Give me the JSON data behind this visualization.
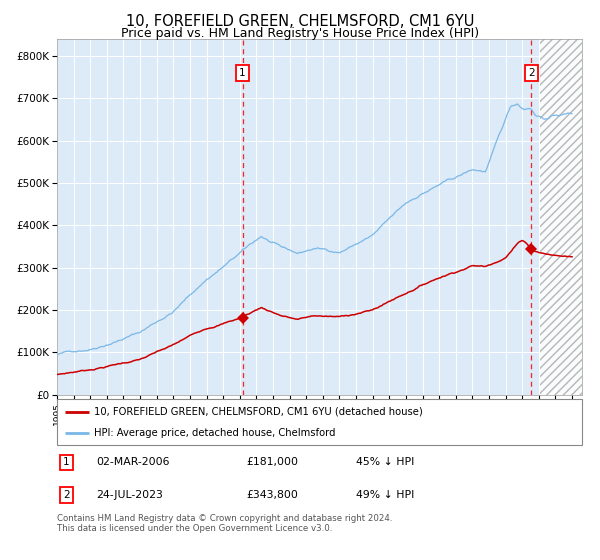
{
  "title": "10, FOREFIELD GREEN, CHELMSFORD, CM1 6YU",
  "subtitle": "Price paid vs. HM Land Registry's House Price Index (HPI)",
  "title_fontsize": 10.5,
  "subtitle_fontsize": 9,
  "bg_color": "#ddeaf7",
  "red_line_color": "#cc0000",
  "blue_line_color": "#7ab8e8",
  "ylim": [
    0,
    840000
  ],
  "yticks": [
    0,
    100000,
    200000,
    300000,
    400000,
    500000,
    600000,
    700000,
    800000
  ],
  "ytick_labels": [
    "£0",
    "£100K",
    "£200K",
    "£300K",
    "£400K",
    "£500K",
    "£600K",
    "£700K",
    "£800K"
  ],
  "xtick_years": [
    1995,
    1996,
    1997,
    1998,
    1999,
    2000,
    2001,
    2002,
    2003,
    2004,
    2005,
    2006,
    2007,
    2008,
    2009,
    2010,
    2011,
    2012,
    2013,
    2014,
    2015,
    2016,
    2017,
    2018,
    2019,
    2020,
    2021,
    2022,
    2023,
    2024,
    2025,
    2026
  ],
  "sale1_year": 2006.17,
  "sale1_price": 181000,
  "sale2_year": 2023.55,
  "sale2_price": 343800,
  "hatch_start": 2024.1,
  "xmax": 2026.6,
  "legend1": "10, FOREFIELD GREEN, CHELMSFORD, CM1 6YU (detached house)",
  "legend2": "HPI: Average price, detached house, Chelmsford",
  "footnote": "Contains HM Land Registry data © Crown copyright and database right 2024.\nThis data is licensed under the Open Government Licence v3.0.",
  "table_rows": [
    {
      "num": "1",
      "date": "02-MAR-2006",
      "price": "£181,000",
      "hpi": "45% ↓ HPI"
    },
    {
      "num": "2",
      "date": "24-JUL-2023",
      "price": "£343,800",
      "hpi": "49% ↓ HPI"
    }
  ]
}
